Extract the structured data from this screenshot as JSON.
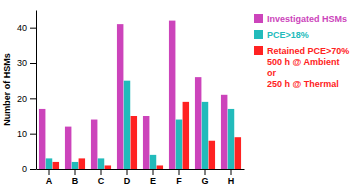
{
  "chart_data": {
    "type": "bar",
    "categories": [
      "A",
      "B",
      "C",
      "D",
      "E",
      "F",
      "G",
      "H"
    ],
    "series": [
      {
        "name": "Investigated HSMs",
        "color": "#cc44bb",
        "values": [
          17,
          12,
          14,
          41,
          15,
          42,
          26,
          21
        ]
      },
      {
        "name": "PCE>18%",
        "color": "#22bbbb",
        "values": [
          3,
          2,
          3,
          25,
          4,
          14,
          19,
          17
        ]
      },
      {
        "name": "Retained PCE>70%\n500 h @ Ambient\nor\n250 h @ Thermal",
        "color": "#ff2222",
        "values": [
          2,
          3,
          1,
          15,
          1,
          19,
          8,
          9
        ]
      }
    ],
    "ylabel": "Number of HSMs",
    "ylim": [
      0,
      45
    ],
    "yticks": [
      0,
      10,
      20,
      30,
      40
    ]
  }
}
